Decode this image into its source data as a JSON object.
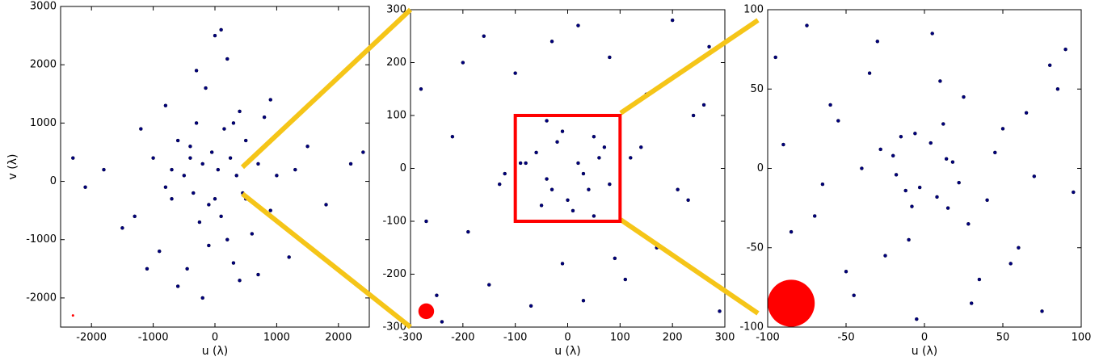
{
  "chart_data": [
    {
      "type": "scatter",
      "xlabel": "u (λ)",
      "ylabel": "v (λ)",
      "xlim": [
        -2500,
        2500
      ],
      "ylim": [
        -2500,
        3000
      ],
      "xticks": [
        -2000,
        -1000,
        0,
        1000,
        2000
      ],
      "yticks": [
        -2000,
        -1000,
        0,
        1000,
        2000,
        3000
      ],
      "series": [
        {
          "color": "#000080",
          "x": [
            -1800,
            -1500,
            -1200,
            -1000,
            -900,
            -800,
            -700,
            -600,
            -500,
            -450,
            -400,
            -350,
            -300,
            -250,
            -200,
            -150,
            -100,
            -50,
            0,
            50,
            100,
            150,
            200,
            250,
            300,
            350,
            400,
            450,
            500,
            600,
            700,
            800,
            900,
            1000,
            1200,
            1500,
            1800,
            -2100,
            2200,
            -600,
            400,
            -300,
            200,
            -1300,
            1300,
            100,
            -800,
            900,
            -200,
            500,
            0,
            -1100,
            1100,
            -400,
            700,
            -2300,
            2400,
            -100,
            300,
            -700
          ],
          "values": [
            200,
            -800,
            900,
            400,
            -1200,
            1300,
            -300,
            700,
            100,
            -1500,
            600,
            -200,
            1000,
            -700,
            300,
            1600,
            -1100,
            500,
            -300,
            200,
            -600,
            900,
            -1000,
            400,
            -1400,
            100,
            1200,
            -200,
            700,
            -900,
            300,
            1100,
            -500,
            100,
            -1300,
            600,
            -400,
            -100,
            300,
            -1800,
            -1700,
            1900,
            2100,
            -600,
            200,
            2600,
            -100,
            1400,
            -2000,
            -300,
            2500,
            -1500,
            900,
            400,
            -1600,
            400,
            500,
            -400,
            1000,
            200
          ]
        }
      ],
      "beam": {
        "x": -2300,
        "y": -2300,
        "r": 15,
        "color": "#ff0000"
      }
    },
    {
      "type": "scatter",
      "xlabel": "u (λ)",
      "xlim": [
        -300,
        300
      ],
      "ylim": [
        -300,
        300
      ],
      "xticks": [
        -300,
        -200,
        -100,
        0,
        100,
        200,
        300
      ],
      "yticks": [
        -300,
        -200,
        -100,
        0,
        100,
        200,
        300
      ],
      "series": [
        {
          "color": "#000080",
          "x": [
            -280,
            -250,
            -220,
            -190,
            -160,
            -130,
            -100,
            -70,
            -40,
            -10,
            20,
            50,
            80,
            110,
            140,
            170,
            200,
            230,
            260,
            290,
            -270,
            -200,
            -150,
            -90,
            -30,
            30,
            90,
            150,
            210,
            270,
            -60,
            -40,
            -20,
            0,
            20,
            40,
            60,
            -50,
            -10,
            30,
            70,
            -80,
            -30,
            10,
            50,
            80,
            -120,
            120,
            -240,
            240
          ],
          "values": [
            150,
            -240,
            60,
            -120,
            250,
            -30,
            180,
            -260,
            90,
            -180,
            270,
            -90,
            210,
            -210,
            40,
            -150,
            280,
            -60,
            120,
            -270,
            -100,
            200,
            -220,
            10,
            240,
            -250,
            -170,
            140,
            -40,
            230,
            30,
            -20,
            50,
            -60,
            10,
            -40,
            20,
            -70,
            70,
            -10,
            40,
            10,
            -40,
            -80,
            60,
            -30,
            -10,
            20,
            -290,
            100
          ]
        }
      ],
      "beam": {
        "x": -270,
        "y": -270,
        "r": 15,
        "color": "#ff0000"
      }
    },
    {
      "type": "scatter",
      "xlabel": "u (λ)",
      "xlim": [
        -100,
        100
      ],
      "ylim": [
        -100,
        100
      ],
      "xticks": [
        -100,
        -50,
        0,
        50,
        100
      ],
      "yticks": [
        -100,
        -50,
        0,
        50,
        100
      ],
      "series": [
        {
          "color": "#000080",
          "x": [
            -95,
            -85,
            -75,
            -65,
            -55,
            -45,
            -35,
            -25,
            -15,
            -5,
            5,
            15,
            25,
            35,
            45,
            55,
            65,
            75,
            85,
            95,
            -90,
            -70,
            -50,
            -30,
            -10,
            10,
            30,
            50,
            70,
            90,
            -20,
            -12,
            -6,
            8,
            14,
            22,
            -18,
            4,
            12,
            -8,
            -40,
            40,
            -60,
            60,
            -80,
            80,
            -28,
            28,
            -3,
            18
          ],
          "values": [
            70,
            -40,
            90,
            -10,
            30,
            -80,
            60,
            -55,
            20,
            -95,
            85,
            -25,
            45,
            -70,
            10,
            -60,
            35,
            -90,
            50,
            -15,
            15,
            -30,
            -65,
            80,
            -45,
            55,
            -85,
            25,
            -5,
            75,
            8,
            -14,
            22,
            -18,
            6,
            -9,
            -4,
            16,
            28,
            -24,
            0,
            -20,
            40,
            -50,
            -75,
            65,
            12,
            -35,
            -12,
            4
          ]
        }
      ],
      "beam": {
        "x": -85,
        "y": -85,
        "r": 15,
        "color": "#ff0000"
      }
    }
  ]
}
